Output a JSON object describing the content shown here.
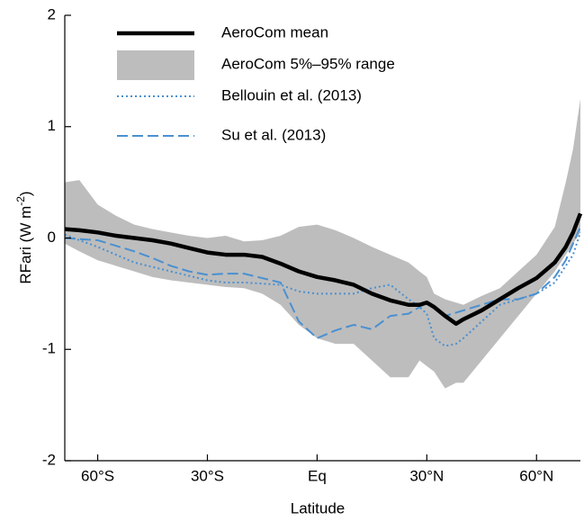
{
  "chart_data": {
    "type": "line",
    "x_label": "Latitude",
    "y_label": {
      "text": "RFari (W m",
      "sup": "-2",
      "end": ")"
    },
    "x": [
      -69,
      -65,
      -60,
      -55,
      -50,
      -45,
      -40,
      -35,
      -30,
      -25,
      -20,
      -15,
      -10,
      -5,
      0,
      5,
      10,
      15,
      20,
      25,
      28,
      30,
      32,
      35,
      38,
      40,
      45,
      50,
      55,
      60,
      65,
      68,
      70,
      72
    ],
    "series": [
      {
        "name": "AeroCom mean",
        "color": "#000000",
        "style": "solid",
        "values": [
          0.08,
          0.07,
          0.05,
          0.02,
          0.0,
          -0.02,
          -0.05,
          -0.09,
          -0.13,
          -0.15,
          -0.15,
          -0.17,
          -0.23,
          -0.3,
          -0.35,
          -0.38,
          -0.42,
          -0.5,
          -0.56,
          -0.6,
          -0.6,
          -0.58,
          -0.62,
          -0.7,
          -0.77,
          -0.73,
          -0.65,
          -0.55,
          -0.45,
          -0.36,
          -0.22,
          -0.08,
          0.05,
          0.22
        ]
      },
      {
        "name": "AeroCom 5%–95% range",
        "color": "#bdbdbd",
        "style": "band",
        "upper": [
          0.5,
          0.52,
          0.3,
          0.2,
          0.12,
          0.08,
          0.05,
          0.02,
          0.0,
          0.02,
          -0.03,
          -0.02,
          0.02,
          0.1,
          0.12,
          0.07,
          0.0,
          -0.08,
          -0.15,
          -0.22,
          -0.3,
          -0.35,
          -0.5,
          -0.55,
          -0.58,
          -0.6,
          -0.52,
          -0.45,
          -0.3,
          -0.15,
          0.1,
          0.5,
          0.8,
          1.25
        ],
        "lower": [
          -0.05,
          -0.12,
          -0.2,
          -0.25,
          -0.3,
          -0.35,
          -0.38,
          -0.4,
          -0.42,
          -0.44,
          -0.45,
          -0.5,
          -0.6,
          -0.78,
          -0.9,
          -0.95,
          -0.95,
          -1.1,
          -1.25,
          -1.25,
          -1.1,
          -1.15,
          -1.2,
          -1.35,
          -1.3,
          -1.3,
          -1.1,
          -0.9,
          -0.7,
          -0.5,
          -0.3,
          -0.15,
          -0.05,
          0.05
        ]
      },
      {
        "name": "Bellouin et al. (2013)",
        "color": "#4a90d0",
        "style": "dotted",
        "values": [
          0.03,
          -0.02,
          -0.08,
          -0.15,
          -0.22,
          -0.26,
          -0.3,
          -0.34,
          -0.38,
          -0.4,
          -0.4,
          -0.41,
          -0.42,
          -0.48,
          -0.5,
          -0.5,
          -0.5,
          -0.45,
          -0.42,
          -0.55,
          -0.62,
          -0.68,
          -0.9,
          -0.97,
          -0.95,
          -0.9,
          -0.75,
          -0.6,
          -0.55,
          -0.5,
          -0.4,
          -0.25,
          -0.15,
          0.05
        ]
      },
      {
        "name": "Su et al. (2013)",
        "color": "#4a90d0",
        "style": "dashed",
        "values": [
          0.0,
          -0.01,
          -0.02,
          -0.07,
          -0.12,
          -0.18,
          -0.25,
          -0.3,
          -0.33,
          -0.32,
          -0.32,
          -0.36,
          -0.4,
          -0.75,
          -0.9,
          -0.83,
          -0.78,
          -0.82,
          -0.7,
          -0.68,
          -0.62,
          -0.58,
          -0.62,
          -0.7,
          -0.67,
          -0.65,
          -0.6,
          -0.55,
          -0.55,
          -0.5,
          -0.35,
          -0.2,
          -0.05,
          0.1
        ]
      }
    ],
    "xlim": [
      -69,
      72
    ],
    "xticks": [
      {
        "value": -60,
        "label": "60°S"
      },
      {
        "value": -30,
        "label": "30°S"
      },
      {
        "value": 0,
        "label": "Eq"
      },
      {
        "value": 30,
        "label": "30°N"
      },
      {
        "value": 60,
        "label": "60°N"
      }
    ],
    "ylim": [
      -2,
      2
    ],
    "yticks": [
      -2,
      -1,
      0,
      1,
      2
    ],
    "legend": "upper left"
  }
}
